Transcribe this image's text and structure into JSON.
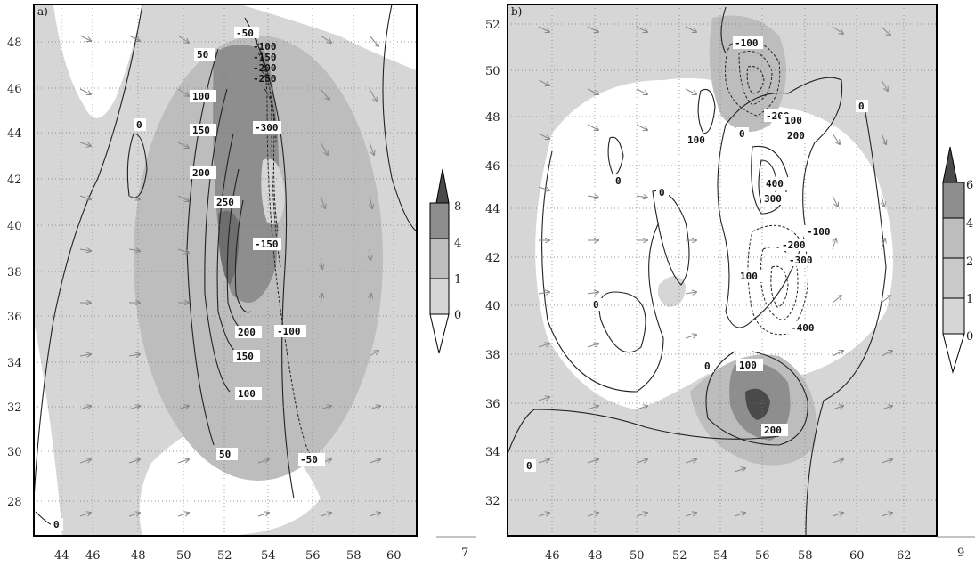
{
  "panel_a": {
    "label": "a)",
    "x_ticks": [
      "44",
      "46",
      "48",
      "50",
      "52",
      "54",
      "56",
      "58",
      "60"
    ],
    "y_ticks": [
      "28",
      "30",
      "32",
      "34",
      "36",
      "38",
      "40",
      "42",
      "44",
      "46",
      "48"
    ],
    "contour_labels": [
      "-50",
      "-100",
      "-150",
      "-200",
      "-250",
      "-300",
      "-150",
      "-100",
      "-50",
      "50",
      "100",
      "150",
      "200",
      "250",
      "200",
      "150",
      "100",
      "50",
      "0",
      "0"
    ],
    "colorbar": {
      "levels": [
        "8",
        "4",
        "1",
        "0"
      ]
    },
    "extra_label": "7"
  },
  "panel_b": {
    "label": "b)",
    "x_ticks": [
      "46",
      "48",
      "50",
      "52",
      "54",
      "56",
      "58",
      "60",
      "62"
    ],
    "y_ticks": [
      "32",
      "34",
      "36",
      "38",
      "40",
      "42",
      "44",
      "46",
      "48",
      "50",
      "52"
    ],
    "contour_labels": [
      "-100",
      "-200",
      "100",
      "200",
      "100",
      "0",
      "0",
      "0",
      "0",
      "400",
      "300",
      "-100",
      "-200",
      "-300",
      "100",
      "0",
      "-400",
      "0",
      "100",
      "200",
      "0",
      "0"
    ],
    "colorbar": {
      "levels": [
        "6",
        "4",
        "2",
        "1",
        "0"
      ]
    },
    "extra_label": "9"
  },
  "colors": {
    "shade_light": "#d6d6d6",
    "shade_mid": "#bdbdbd",
    "shade_dark": "#8e8e8e",
    "shade_darkest": "#4a4a4a",
    "frame": "#000000",
    "arrow": "#888888"
  }
}
